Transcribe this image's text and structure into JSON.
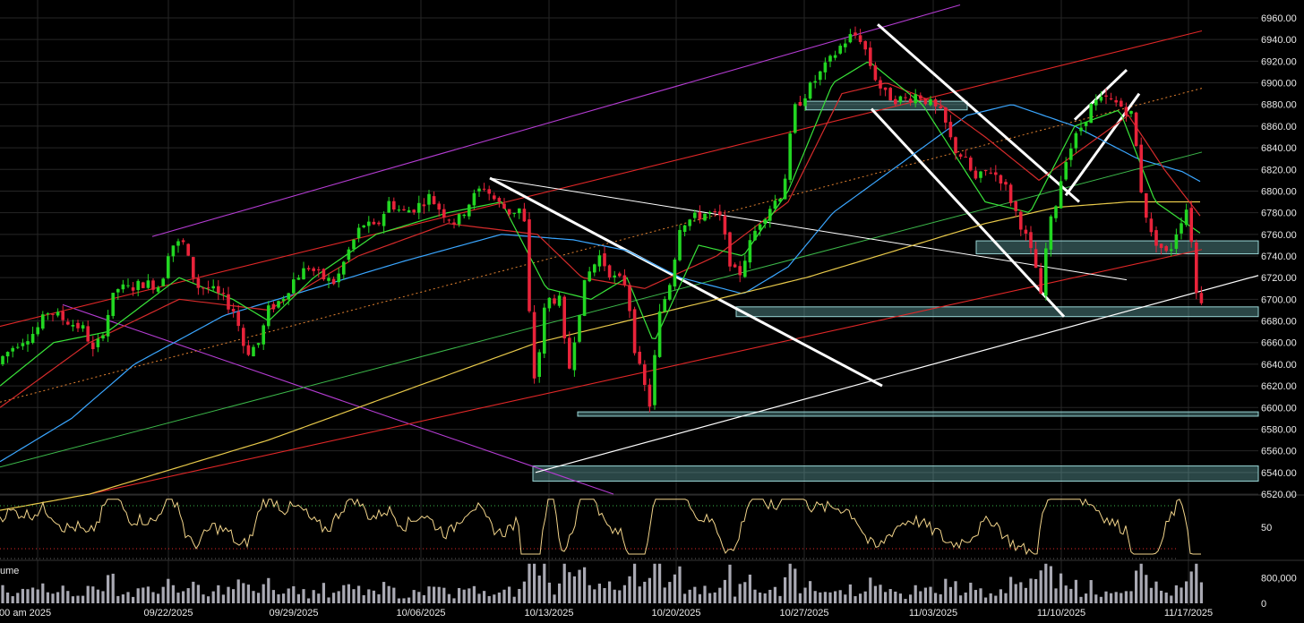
{
  "chart_data": {
    "type": "candlestick",
    "panels": [
      "price",
      "oscillator",
      "volume"
    ],
    "price_axis": {
      "ylim": [
        6520,
        6960
      ],
      "ticks": [
        "6960.00",
        "6940.00",
        "6920.00",
        "6900.00",
        "6880.00",
        "6860.00",
        "6840.00",
        "6820.00",
        "6800.00",
        "6780.00",
        "6760.00",
        "6740.00",
        "6720.00",
        "6700.00",
        "6680.00",
        "6660.00",
        "6640.00",
        "6620.00",
        "6600.00",
        "6580.00",
        "6560.00",
        "6540.00",
        "6520.00"
      ]
    },
    "oscillator_axis": {
      "ylim": [
        20,
        80
      ],
      "ticks": [
        "50"
      ],
      "upper_band": 70,
      "lower_band": 30
    },
    "volume_axis": {
      "ylim": [
        0,
        1300000
      ],
      "ticks": [
        "800,000",
        "0"
      ]
    },
    "panel_labels": {
      "volume": "ume"
    },
    "time_axis": {
      "labels": [
        ":00 am 2025",
        "09/22/2025",
        "09/29/2025",
        "10/06/2025",
        "10/13/2025",
        "10/20/2025",
        "10/27/2025",
        "11/03/2025",
        "11/10/2025",
        "11/17/2025"
      ]
    },
    "price_anchors": [
      [
        0,
        6640
      ],
      [
        25,
        6660
      ],
      [
        45,
        6670
      ],
      [
        60,
        6690
      ],
      [
        75,
        6682
      ],
      [
        100,
        6672
      ],
      [
        110,
        6650
      ],
      [
        120,
        6670
      ],
      [
        135,
        6710
      ],
      [
        150,
        6710
      ],
      [
        165,
        6715
      ],
      [
        185,
        6712
      ],
      [
        195,
        6750
      ],
      [
        210,
        6752
      ],
      [
        225,
        6712
      ],
      [
        240,
        6710
      ],
      [
        255,
        6700
      ],
      [
        268,
        6688
      ],
      [
        280,
        6650
      ],
      [
        295,
        6660
      ],
      [
        305,
        6690
      ],
      [
        320,
        6700
      ],
      [
        335,
        6720
      ],
      [
        350,
        6730
      ],
      [
        365,
        6720
      ],
      [
        380,
        6715
      ],
      [
        395,
        6745
      ],
      [
        410,
        6770
      ],
      [
        425,
        6765
      ],
      [
        440,
        6790
      ],
      [
        455,
        6780
      ],
      [
        470,
        6785
      ],
      [
        485,
        6795
      ],
      [
        500,
        6780
      ],
      [
        515,
        6770
      ],
      [
        530,
        6790
      ],
      [
        545,
        6805
      ],
      [
        560,
        6790
      ],
      [
        575,
        6780
      ],
      [
        590,
        6785
      ],
      [
        597,
        6680
      ],
      [
        603,
        6620
      ],
      [
        615,
        6700
      ],
      [
        630,
        6700
      ],
      [
        640,
        6630
      ],
      [
        650,
        6680
      ],
      [
        660,
        6720
      ],
      [
        675,
        6740
      ],
      [
        690,
        6720
      ],
      [
        705,
        6715
      ],
      [
        715,
        6650
      ],
      [
        725,
        6620
      ],
      [
        732,
        6600
      ],
      [
        740,
        6680
      ],
      [
        755,
        6720
      ],
      [
        765,
        6770
      ],
      [
        780,
        6775
      ],
      [
        795,
        6780
      ],
      [
        810,
        6775
      ],
      [
        822,
        6730
      ],
      [
        830,
        6720
      ],
      [
        840,
        6745
      ],
      [
        852,
        6770
      ],
      [
        865,
        6785
      ],
      [
        880,
        6800
      ],
      [
        892,
        6875
      ],
      [
        905,
        6890
      ],
      [
        918,
        6905
      ],
      [
        932,
        6920
      ],
      [
        945,
        6935
      ],
      [
        958,
        6945
      ],
      [
        968,
        6940
      ],
      [
        980,
        6910
      ],
      [
        992,
        6890
      ],
      [
        1005,
        6885
      ],
      [
        1018,
        6885
      ],
      [
        1030,
        6890
      ],
      [
        1045,
        6880
      ],
      [
        1058,
        6870
      ],
      [
        1070,
        6840
      ],
      [
        1082,
        6830
      ],
      [
        1095,
        6810
      ],
      [
        1110,
        6820
      ],
      [
        1125,
        6810
      ],
      [
        1140,
        6780
      ],
      [
        1150,
        6760
      ],
      [
        1162,
        6730
      ],
      [
        1168,
        6700
      ],
      [
        1175,
        6760
      ],
      [
        1185,
        6790
      ],
      [
        1195,
        6830
      ],
      [
        1210,
        6855
      ],
      [
        1225,
        6880
      ],
      [
        1240,
        6885
      ],
      [
        1255,
        6880
      ],
      [
        1270,
        6870
      ],
      [
        1280,
        6800
      ],
      [
        1290,
        6760
      ],
      [
        1300,
        6750
      ],
      [
        1310,
        6740
      ],
      [
        1320,
        6765
      ],
      [
        1330,
        6785
      ],
      [
        1336,
        6755
      ],
      [
        1342,
        6700
      ]
    ],
    "moving_averages": [
      {
        "color": "#3aa6ff",
        "points": [
          [
            0,
            6550
          ],
          [
            80,
            6590
          ],
          [
            150,
            6640
          ],
          [
            250,
            6685
          ],
          [
            350,
            6710
          ],
          [
            450,
            6735
          ],
          [
            560,
            6760
          ],
          [
            640,
            6755
          ],
          [
            700,
            6745
          ],
          [
            760,
            6720
          ],
          [
            830,
            6705
          ],
          [
            880,
            6730
          ],
          [
            930,
            6780
          ],
          [
            980,
            6810
          ],
          [
            1030,
            6840
          ],
          [
            1080,
            6870
          ],
          [
            1130,
            6880
          ],
          [
            1200,
            6860
          ],
          [
            1270,
            6830
          ],
          [
            1320,
            6818
          ],
          [
            1342,
            6808
          ]
        ]
      },
      {
        "color": "#e8c94a",
        "points": [
          [
            0,
            6505
          ],
          [
            100,
            6520
          ],
          [
            200,
            6545
          ],
          [
            300,
            6570
          ],
          [
            400,
            6600
          ],
          [
            500,
            6630
          ],
          [
            600,
            6660
          ],
          [
            700,
            6680
          ],
          [
            800,
            6700
          ],
          [
            900,
            6720
          ],
          [
            1000,
            6745
          ],
          [
            1100,
            6770
          ],
          [
            1180,
            6785
          ],
          [
            1260,
            6790
          ],
          [
            1342,
            6790
          ]
        ]
      },
      {
        "color": "#d52b2b",
        "points": [
          [
            0,
            6600
          ],
          [
            100,
            6660
          ],
          [
            200,
            6700
          ],
          [
            300,
            6690
          ],
          [
            400,
            6740
          ],
          [
            500,
            6770
          ],
          [
            600,
            6760
          ],
          [
            650,
            6720
          ],
          [
            720,
            6710
          ],
          [
            800,
            6740
          ],
          [
            880,
            6790
          ],
          [
            940,
            6890
          ],
          [
            990,
            6900
          ],
          [
            1050,
            6880
          ],
          [
            1100,
            6850
          ],
          [
            1160,
            6810
          ],
          [
            1210,
            6840
          ],
          [
            1260,
            6870
          ],
          [
            1300,
            6820
          ],
          [
            1342,
            6775
          ]
        ]
      },
      {
        "color": "#39e339",
        "points": [
          [
            0,
            6620
          ],
          [
            60,
            6660
          ],
          [
            120,
            6670
          ],
          [
            200,
            6720
          ],
          [
            260,
            6700
          ],
          [
            300,
            6680
          ],
          [
            350,
            6720
          ],
          [
            420,
            6760
          ],
          [
            500,
            6780
          ],
          [
            560,
            6790
          ],
          [
            610,
            6710
          ],
          [
            660,
            6700
          ],
          [
            700,
            6720
          ],
          [
            730,
            6660
          ],
          [
            780,
            6750
          ],
          [
            830,
            6740
          ],
          [
            880,
            6800
          ],
          [
            930,
            6900
          ],
          [
            970,
            6920
          ],
          [
            1030,
            6880
          ],
          [
            1100,
            6790
          ],
          [
            1150,
            6780
          ],
          [
            1200,
            6860
          ],
          [
            1250,
            6875
          ],
          [
            1290,
            6790
          ],
          [
            1342,
            6760
          ]
        ]
      }
    ],
    "trend_lines": [
      {
        "color": "#b43cd2",
        "width": 1.1,
        "from": [
          170,
          6758
        ],
        "to": [
          1072,
          6972
        ]
      },
      {
        "color": "#b43cd2",
        "width": 1.1,
        "from": [
          70,
          6695
        ],
        "to": [
          685,
          6520
        ]
      },
      {
        "color": "#e02727",
        "width": 1.1,
        "from": [
          0,
          6675
        ],
        "to": [
          1342,
          6948
        ]
      },
      {
        "color": "#e02727",
        "width": 1.1,
        "from": [
          100,
          6520
        ],
        "to": [
          1342,
          6746
        ]
      },
      {
        "color": "#e08030",
        "width": 1.0,
        "dash": "2,3",
        "from": [
          0,
          6605
        ],
        "to": [
          1342,
          6895
        ]
      },
      {
        "color": "#3cb84a",
        "width": 1.0,
        "from": [
          0,
          6545
        ],
        "to": [
          1342,
          6836
        ]
      },
      {
        "color": "#ffffff",
        "width": 1.0,
        "from": [
          547,
          6812
        ],
        "to": [
          1258,
          6718
        ]
      },
      {
        "color": "#ffffff",
        "width": 1.2,
        "from": [
          598,
          6540
        ],
        "to": [
          1405,
          6722
        ]
      },
      {
        "color": "#ffffff",
        "width": 3.0,
        "from": [
          547,
          6812
        ],
        "to": [
          985,
          6620
        ]
      },
      {
        "color": "#ffffff",
        "width": 3.0,
        "from": [
          980,
          6954
        ],
        "to": [
          1205,
          6790
        ]
      },
      {
        "color": "#ffffff",
        "width": 3.0,
        "from": [
          973,
          6876
        ],
        "to": [
          1188,
          6684
        ]
      },
      {
        "color": "#ffffff",
        "width": 3.0,
        "from": [
          1200,
          6866
        ],
        "to": [
          1258,
          6912
        ]
      },
      {
        "color": "#ffffff",
        "width": 3.0,
        "from": [
          1190,
          6796
        ],
        "to": [
          1272,
          6890
        ]
      }
    ],
    "zones": [
      {
        "x1": 900,
        "x2": 1080,
        "lo": 6875,
        "hi": 6883
      },
      {
        "x1": 1090,
        "x2": 1405,
        "lo": 6742,
        "hi": 6754
      },
      {
        "x1": 822,
        "x2": 1405,
        "lo": 6684,
        "hi": 6693
      },
      {
        "x1": 645,
        "x2": 1405,
        "lo": 6592,
        "hi": 6596
      },
      {
        "x1": 595,
        "x2": 1405,
        "lo": 6532,
        "hi": 6546
      }
    ]
  }
}
